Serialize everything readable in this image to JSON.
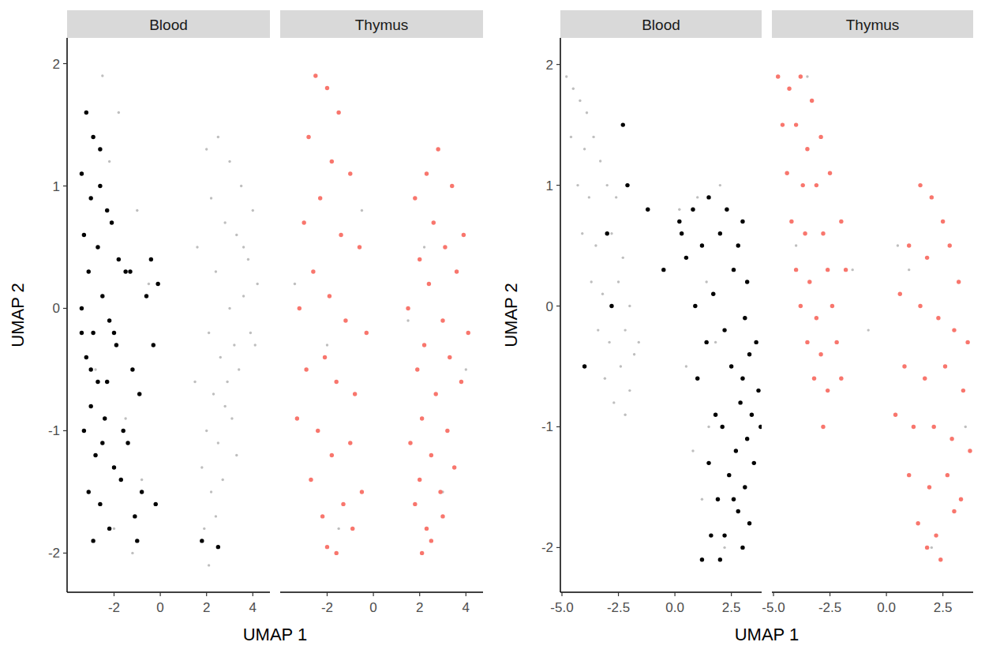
{
  "chart_data": [
    {
      "type": "scatter",
      "xlabel": "UMAP 1",
      "ylabel": "UMAP 2",
      "xlim": [
        -4.03,
        4.74
      ],
      "ylim": [
        -2.32,
        2.21
      ],
      "xticks": [
        -2,
        0,
        2,
        4
      ],
      "yticks": [
        -2,
        -1,
        0,
        1,
        2
      ],
      "panels": [
        {
          "title": "Blood",
          "series": [
            {
              "color": "#bebebe",
              "x": [
                2.0,
                2.5,
                3.0,
                3.5,
                4.0,
                2.2,
                2.8,
                3.3,
                3.8,
                2.4,
                3.0,
                3.6,
                2.1,
                2.6,
                3.2,
                3.9,
                2.3,
                2.9,
                3.4,
                4.1,
                2.0,
                2.5,
                3.1,
                1.8,
                2.2,
                2.7,
                3.3,
                1.9,
                2.4,
                2.1,
                1.6,
                2.8,
                3.6,
                4.2,
                1.5,
                -2.5,
                -1.8,
                -2.2,
                -1.0,
                -0.5,
                -2.8,
                -1.5,
                -0.8,
                -2.0,
                -1.2
              ],
              "values": [
                1.3,
                1.4,
                1.2,
                1.0,
                0.8,
                0.9,
                0.7,
                0.6,
                0.4,
                0.3,
                0.0,
                0.1,
                -0.2,
                -0.4,
                -0.3,
                -0.2,
                -0.7,
                -0.6,
                -0.5,
                -0.3,
                -1.0,
                -1.1,
                -0.9,
                -1.3,
                -1.5,
                -1.4,
                -1.2,
                -1.8,
                -1.7,
                -2.1,
                0.5,
                -0.8,
                0.5,
                0.2,
                -0.6,
                1.9,
                1.6,
                1.2,
                0.8,
                0.2,
                -0.5,
                -0.9,
                -1.4,
                -1.8,
                -2.0
              ]
            },
            {
              "color": "#000000",
              "x": [
                -3.2,
                -2.9,
                -3.4,
                -2.6,
                -3.0,
                -2.3,
                -3.3,
                -2.7,
                -2.1,
                -3.1,
                -1.8,
                -2.5,
                -3.4,
                -2.9,
                -1.5,
                -2.2,
                -3.2,
                -0.4,
                -0.1,
                -2.7,
                -1.9,
                -3.0,
                -2.4,
                -1.2,
                -3.3,
                -2.8,
                -0.6,
                -2.0,
                -3.1,
                -1.4,
                -2.6,
                -3.4,
                -2.2,
                -0.9,
                -1.7,
                -2.9,
                -0.3,
                -2.5,
                -1.1,
                -3.0,
                -2.3,
                -1.6,
                -0.8,
                -2.0,
                -1.0,
                -0.2,
                -1.3,
                -2.6,
                1.8,
                2.5
              ],
              "values": [
                1.6,
                1.4,
                1.1,
                1.3,
                0.9,
                0.8,
                0.6,
                0.5,
                0.7,
                0.3,
                0.4,
                0.1,
                0.0,
                -0.2,
                0.3,
                -0.1,
                -0.4,
                0.4,
                0.2,
                -0.6,
                -0.3,
                -0.8,
                -0.9,
                -0.5,
                -1.0,
                -1.2,
                0.1,
                -1.3,
                -1.5,
                -1.1,
                -1.6,
                -0.2,
                -1.8,
                -0.7,
                -1.4,
                -1.9,
                -0.3,
                -1.1,
                -1.7,
                -0.5,
                -0.6,
                -1.0,
                -1.5,
                -0.2,
                -1.9,
                -1.6,
                0.3,
                1.0,
                -1.9,
                -1.95
              ]
            }
          ]
        },
        {
          "title": "Thymus",
          "series": [
            {
              "color": "#bebebe",
              "x": [
                -3.4,
                -2.0,
                -0.5,
                1.5,
                3.0,
                4.0,
                -1.5,
                2.2
              ],
              "values": [
                0.2,
                -0.3,
                0.8,
                -0.1,
                -1.5,
                -0.5,
                -1.8,
                0.5
              ]
            },
            {
              "color": "#F8766D",
              "x": [
                -2.5,
                -2.0,
                -1.5,
                -2.8,
                -1.8,
                -1.0,
                -2.3,
                -3.0,
                -1.4,
                -0.6,
                -2.6,
                -1.9,
                -3.2,
                -1.2,
                -0.3,
                -2.1,
                -2.9,
                -1.6,
                -0.8,
                -3.3,
                -2.4,
                -1.0,
                -1.8,
                -2.7,
                -0.5,
                -1.3,
                -2.2,
                -0.9,
                -1.6,
                -2.0,
                2.8,
                2.3,
                3.4,
                1.8,
                2.6,
                3.9,
                3.1,
                2.0,
                3.6,
                2.4,
                1.5,
                3.0,
                4.1,
                2.2,
                3.3,
                1.9,
                2.7,
                3.8,
                2.1,
                3.2,
                1.6,
                2.5,
                3.5,
                2.0,
                2.9,
                1.8,
                2.3,
                3.0,
                2.1,
                2.5
              ],
              "values": [
                1.9,
                1.8,
                1.6,
                1.4,
                1.2,
                1.1,
                0.9,
                0.7,
                0.6,
                0.5,
                0.3,
                0.1,
                0.0,
                -0.1,
                -0.2,
                -0.4,
                -0.5,
                -0.6,
                -0.7,
                -0.9,
                -1.0,
                -1.1,
                -1.2,
                -1.4,
                -1.5,
                -1.6,
                -1.7,
                -1.8,
                -2.0,
                -1.95,
                1.3,
                1.1,
                1.0,
                0.9,
                0.7,
                0.6,
                0.5,
                0.4,
                0.3,
                0.2,
                0.0,
                -0.1,
                -0.2,
                -0.3,
                -0.4,
                -0.5,
                -0.7,
                -0.6,
                -0.9,
                -1.0,
                -1.1,
                -1.2,
                -1.3,
                -1.4,
                -1.5,
                -1.6,
                -1.8,
                -1.7,
                -2.0,
                -1.9
              ]
            }
          ]
        }
      ]
    },
    {
      "type": "scatter",
      "xlabel": "UMAP 1",
      "ylabel": "UMAP 2",
      "xlim": [
        -5.07,
        3.84
      ],
      "ylim": [
        -2.37,
        2.22
      ],
      "xticks": [
        {
          "value": -5,
          "label": "-5.0"
        },
        -2.5,
        {
          "value": 0,
          "label": "0.0"
        },
        2.5
      ],
      "yticks": [
        -2,
        -1,
        0,
        1,
        2
      ],
      "panels": [
        {
          "title": "Blood",
          "series": [
            {
              "color": "#bebebe",
              "x": [
                -4.8,
                -4.5,
                -4.2,
                -3.9,
                -4.6,
                -4.0,
                -3.6,
                -3.3,
                -4.3,
                -3.8,
                -3.0,
                -2.6,
                -4.1,
                -3.5,
                -2.8,
                -2.3,
                -3.7,
                -3.2,
                -2.5,
                -2.0,
                -3.4,
                -2.9,
                -2.2,
                -1.8,
                -3.1,
                -2.4,
                -2.7,
                -2.0,
                -1.6,
                -2.2,
                0.2,
                1.0,
                2.0,
                0.5,
                1.5,
                1.2,
                0.8,
                2.2,
                1.8,
                1.4
              ],
              "values": [
                1.9,
                1.8,
                1.7,
                1.6,
                1.4,
                1.3,
                1.4,
                1.2,
                1.0,
                0.9,
                1.0,
                0.9,
                0.6,
                0.5,
                0.6,
                0.4,
                0.2,
                0.1,
                0.2,
                0.0,
                -0.2,
                -0.3,
                -0.2,
                -0.4,
                -0.6,
                -0.5,
                -0.8,
                -0.7,
                -0.3,
                -0.9,
                0.8,
                0.9,
                1.0,
                -0.5,
                -1.0,
                -1.6,
                -1.2,
                -2.0,
                -0.3,
                0.2
              ]
            },
            {
              "color": "#000000",
              "x": [
                0.2,
                0.8,
                1.5,
                2.3,
                3.0,
                0.5,
                1.2,
                2.0,
                2.8,
                3.2,
                0.9,
                1.7,
                2.6,
                3.1,
                1.4,
                2.2,
                3.3,
                3.6,
                1.0,
                2.5,
                3.0,
                3.7,
                1.8,
                2.9,
                3.4,
                2.1,
                3.2,
                3.8,
                1.5,
                2.7,
                3.5,
                2.4,
                3.1,
                1.9,
                2.8,
                3.3,
                2.2,
                3.0,
                1.6,
                2.6,
                -2.3,
                -2.1,
                -3.0,
                -1.2,
                -4.0,
                -2.8,
                1.2,
                2.0,
                -0.5,
                0.3
              ],
              "values": [
                0.7,
                0.8,
                0.9,
                0.8,
                0.7,
                0.4,
                0.5,
                0.6,
                0.5,
                0.2,
                0.0,
                0.1,
                0.3,
                -0.1,
                -0.3,
                -0.2,
                -0.4,
                -0.3,
                -0.6,
                -0.5,
                -0.6,
                -0.7,
                -0.9,
                -0.8,
                -0.9,
                -1.0,
                -1.1,
                -1.0,
                -1.3,
                -1.2,
                -1.3,
                -1.4,
                -1.5,
                -1.6,
                -1.7,
                -1.8,
                -1.9,
                -2.0,
                -1.9,
                -1.6,
                1.5,
                1.0,
                0.6,
                0.8,
                -0.5,
                0.0,
                -2.1,
                -2.1,
                0.3,
                0.6
              ]
            }
          ]
        },
        {
          "title": "Thymus",
          "series": [
            {
              "color": "#bebebe",
              "x": [
                -3.5,
                -1.5,
                -0.8,
                0.5,
                2.0,
                3.5,
                -4.0,
                1.0
              ],
              "values": [
                1.9,
                0.3,
                -0.2,
                0.5,
                -2.0,
                -1.0,
                0.5,
                0.3
              ]
            },
            {
              "color": "#F8766D",
              "x": [
                -4.8,
                -4.3,
                -3.8,
                -3.3,
                -4.6,
                -4.0,
                -3.5,
                -2.9,
                -4.4,
                -3.7,
                -3.1,
                -2.5,
                -4.2,
                -3.6,
                -2.8,
                -2.0,
                -4.0,
                -3.4,
                -2.6,
                -1.8,
                -3.8,
                -3.1,
                -2.4,
                -3.5,
                -2.9,
                -2.2,
                -3.2,
                -2.6,
                -2.0,
                -2.8,
                1.5,
                2.0,
                2.5,
                1.0,
                1.8,
                2.8,
                3.2,
                0.6,
                1.5,
                2.3,
                3.0,
                3.6,
                0.8,
                1.7,
                2.6,
                3.4,
                0.4,
                1.2,
                2.1,
                2.9,
                3.7,
                1.0,
                1.9,
                2.7,
                3.3,
                1.4,
                2.2,
                3.0,
                1.8,
                2.4
              ],
              "values": [
                1.9,
                1.8,
                1.9,
                1.7,
                1.5,
                1.5,
                1.3,
                1.4,
                1.1,
                1.0,
                1.0,
                1.1,
                0.7,
                0.6,
                0.6,
                0.7,
                0.3,
                0.2,
                0.3,
                0.3,
                0.0,
                -0.1,
                0.0,
                -0.3,
                -0.4,
                -0.3,
                -0.6,
                -0.7,
                -0.6,
                -1.0,
                1.0,
                0.9,
                0.7,
                0.5,
                0.4,
                0.5,
                0.2,
                0.1,
                0.0,
                -0.1,
                -0.2,
                -0.3,
                -0.5,
                -0.6,
                -0.5,
                -0.7,
                -0.9,
                -1.0,
                -1.0,
                -1.1,
                -1.2,
                -1.4,
                -1.5,
                -1.4,
                -1.6,
                -1.8,
                -1.9,
                -1.7,
                -2.0,
                -2.1
              ]
            }
          ]
        }
      ]
    }
  ]
}
